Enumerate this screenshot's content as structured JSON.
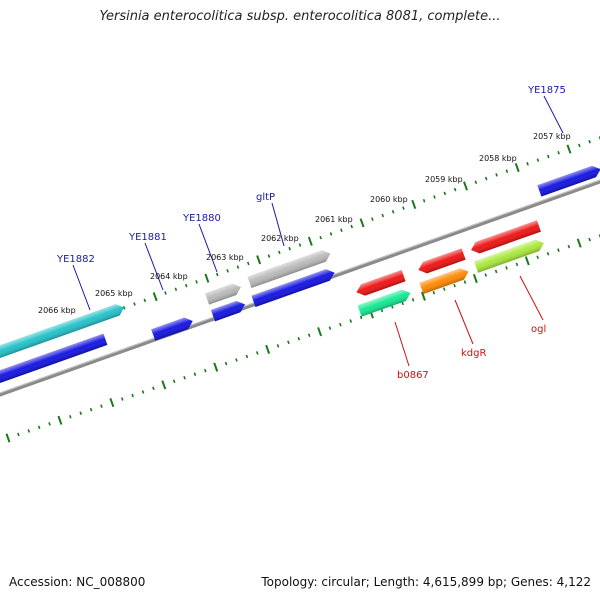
{
  "title": "Yersinia enterocolitica subsp. enterocolitica 8081, complete...",
  "footer": {
    "accession": "Accession: NC_008800",
    "topology": "Topology: circular; Length: 4,615,899 bp; Genes: 4,122"
  },
  "ruler": {
    "unit": "kbp",
    "tick_labels": [
      "2066 kbp",
      "2065 kbp",
      "2064 kbp",
      "2063 kbp",
      "2062 kbp",
      "2061 kbp",
      "2060 kbp",
      "2059 kbp",
      "2058 kbp",
      "2057 kbp"
    ]
  },
  "gene_labels": {
    "forward": [
      "YE1882",
      "YE1881",
      "YE1880",
      "gltP",
      "YE1875"
    ],
    "reverse": [
      "b0867",
      "kdgR",
      "ogl"
    ]
  },
  "colors": {
    "backbone": "#8a8a8a",
    "ticks": "#1a7a1a",
    "forward_label": "#1a1aa8",
    "reverse_label": "#cc1111",
    "blue": "#1010e0",
    "cyan": "#20c0c8",
    "grey": "#b8b8b8",
    "red": "#ee1010",
    "orange": "#ff8800",
    "yellowgreen": "#a8e838",
    "springgreen": "#10e890"
  }
}
